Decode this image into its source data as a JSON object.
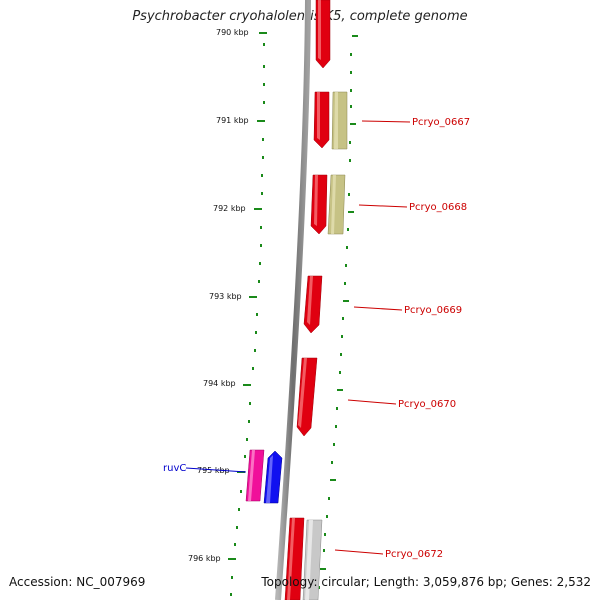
{
  "title": "Psychrobacter cryohalolentis K5, complete genome",
  "footer": {
    "accession": "Accession: NC_007969",
    "summary": "Topology: circular; Length: 3,059,876 bp; Genes: 2,532"
  },
  "scale": {
    "unit": "kbp",
    "ticks": [
      "790 kbp",
      "791 kbp",
      "792 kbp",
      "793 kbp",
      "794 kbp",
      "795 kbp",
      "796 kbp"
    ]
  },
  "genes": [
    {
      "label": "",
      "color": "#e00010",
      "strand": "reverse"
    },
    {
      "label": "Pcryo_0667",
      "color": "#e00010",
      "strand": "reverse"
    },
    {
      "label": "",
      "color": "#c6c285",
      "strand": "forward"
    },
    {
      "label": "Pcryo_0668",
      "color": "#e00010",
      "strand": "reverse"
    },
    {
      "label": "",
      "color": "#c6c285",
      "strand": "forward"
    },
    {
      "label": "Pcryo_0669",
      "color": "#e00010",
      "strand": "reverse"
    },
    {
      "label": "Pcryo_0670",
      "color": "#e00010",
      "strand": "reverse"
    },
    {
      "label": "",
      "color": "#f0109a",
      "strand": "reverse"
    },
    {
      "label": "ruvC",
      "color": "#1010f0",
      "strand": "forward"
    },
    {
      "label": "",
      "color": "#e00010",
      "strand": "reverse"
    },
    {
      "label": "Pcryo_0672",
      "color": "#c8c8c8",
      "strand": "forward"
    }
  ],
  "colors": {
    "backbone": "#8a8a8a",
    "tick": "#1a8a1a",
    "label_red": "#cc0000",
    "label_blue": "#0000cc"
  }
}
